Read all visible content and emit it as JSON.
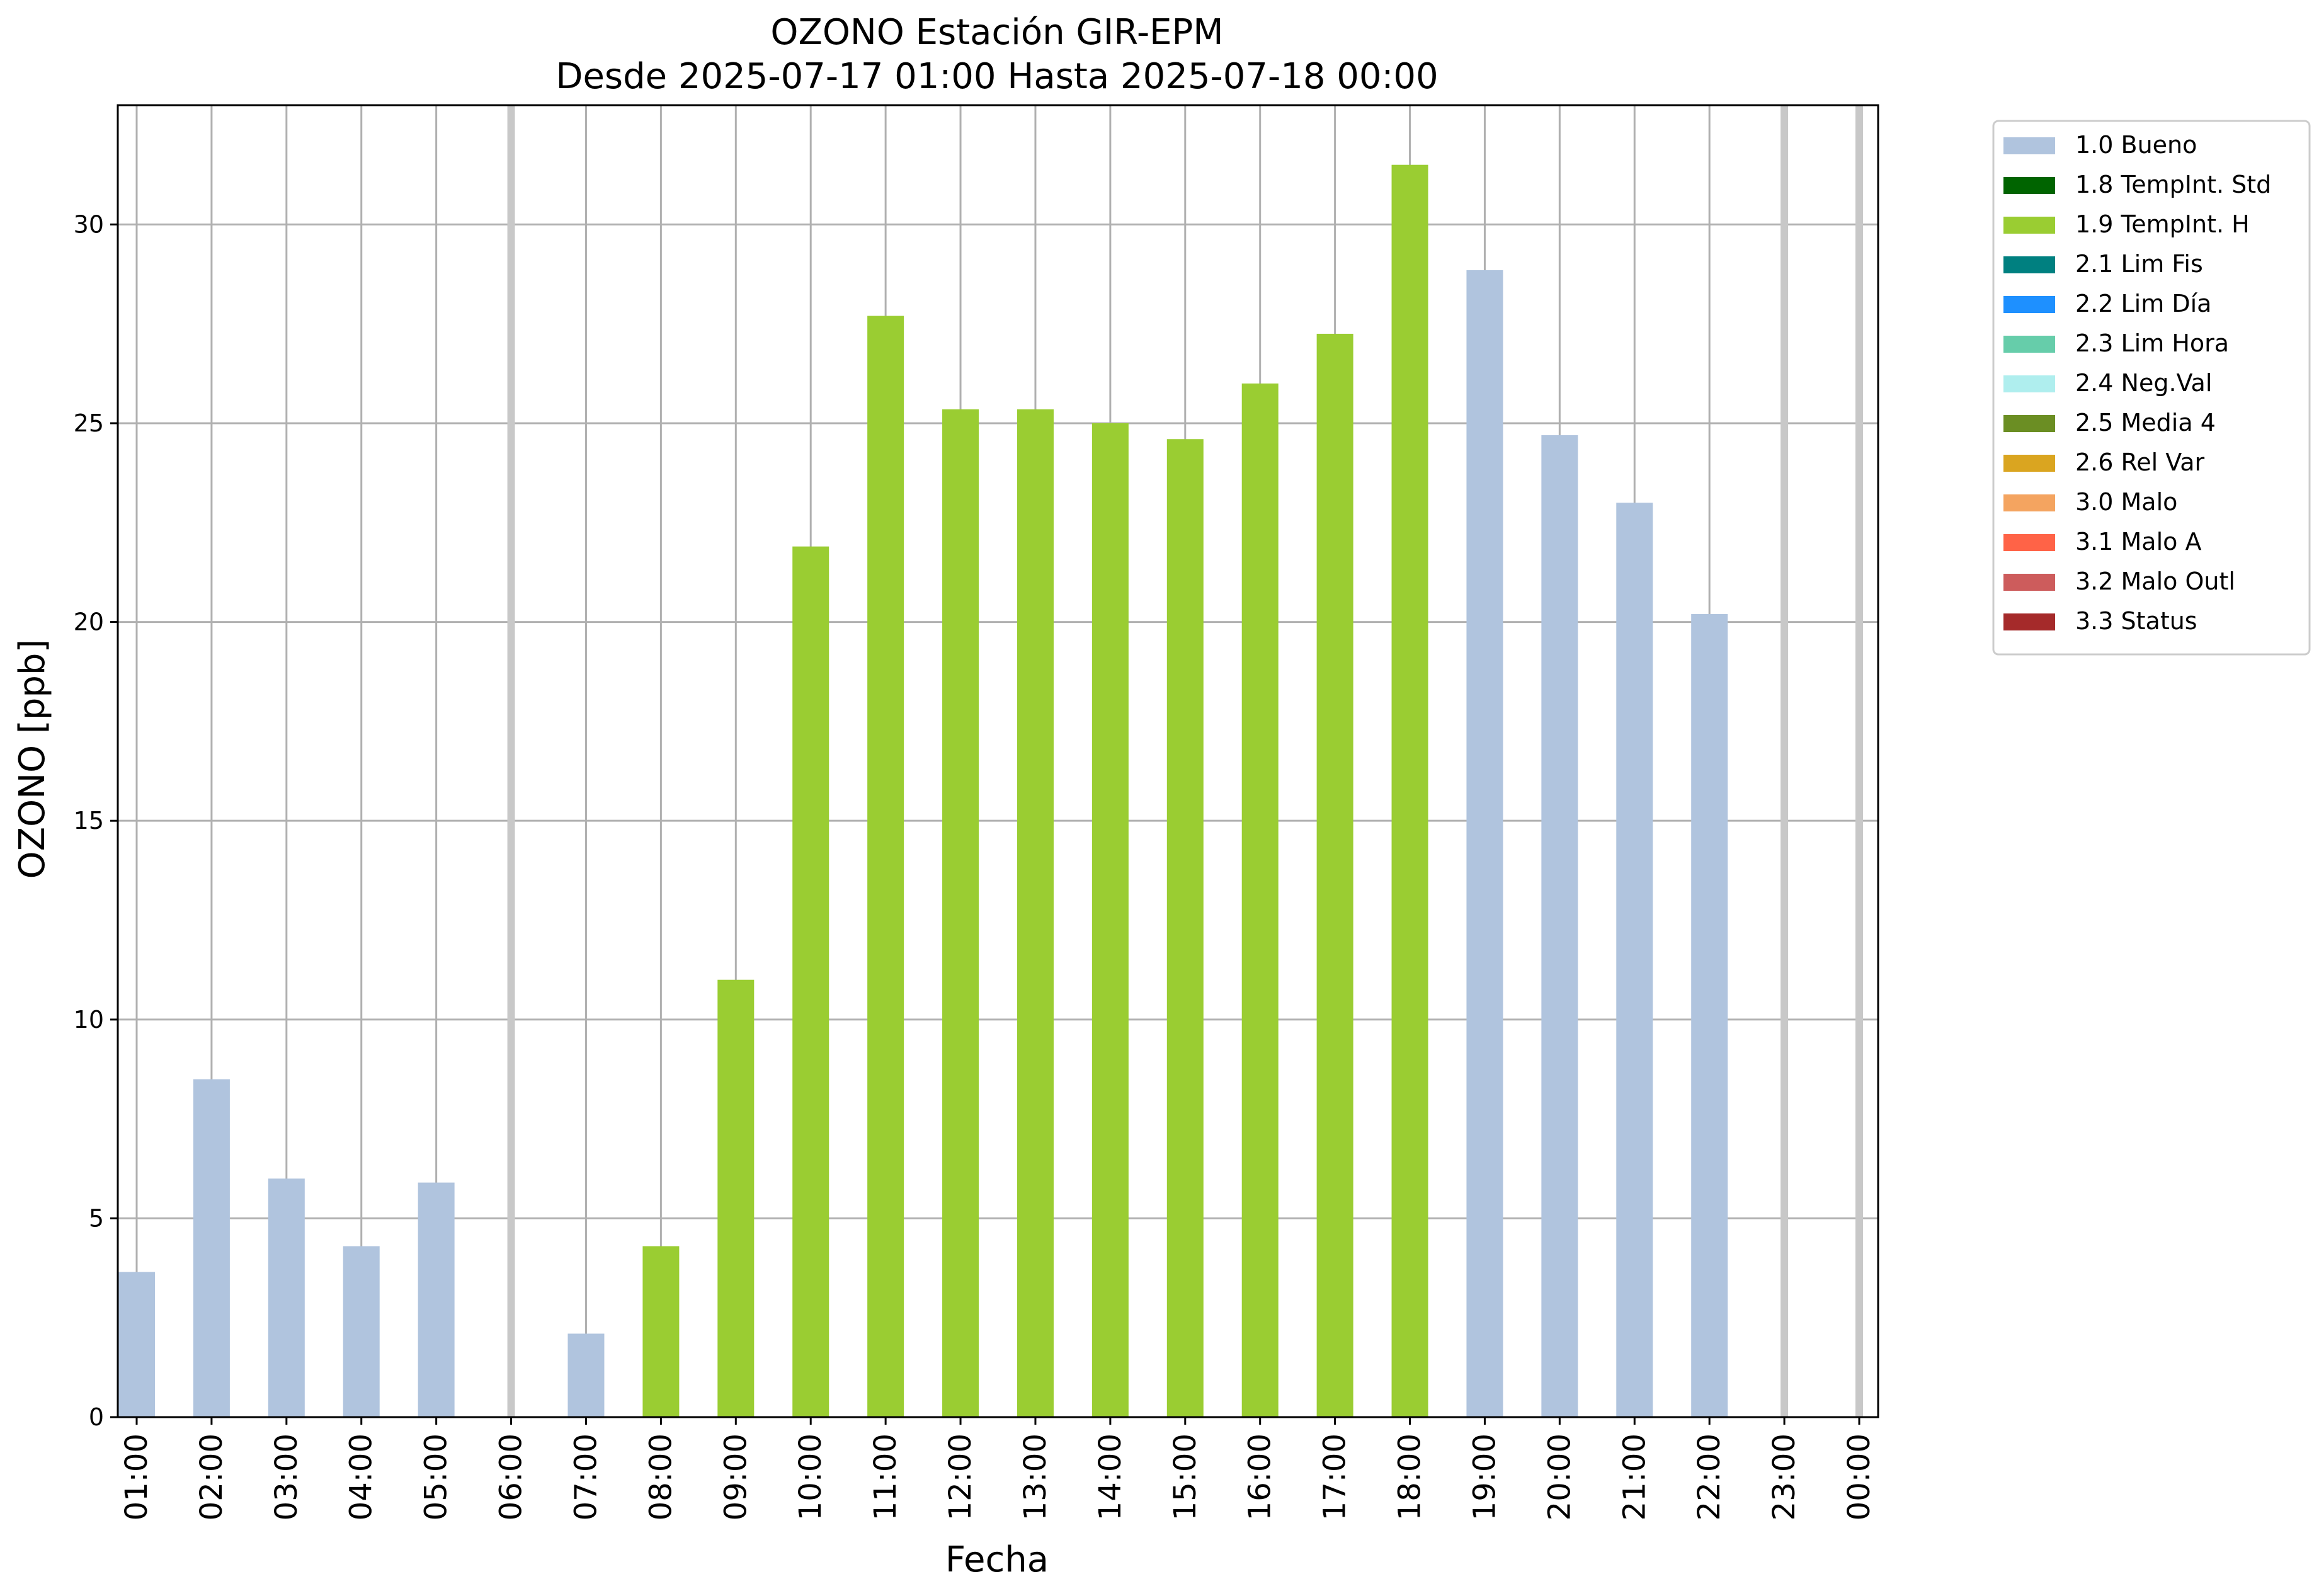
{
  "chart_data": {
    "type": "bar",
    "title": "OZONO Estación GIR-EPM",
    "subtitle": "Desde 2025-07-17 01:00 Hasta 2025-07-18 00:00",
    "xlabel": "Fecha",
    "ylabel": "OZONO [ppb]",
    "ylim": [
      0,
      33
    ],
    "yticks": [
      0,
      5,
      10,
      15,
      20,
      25,
      30
    ],
    "grid": true,
    "legend_position": "outside-right",
    "categories": [
      "01:00",
      "02:00",
      "03:00",
      "04:00",
      "05:00",
      "06:00",
      "07:00",
      "08:00",
      "09:00",
      "10:00",
      "11:00",
      "12:00",
      "13:00",
      "14:00",
      "15:00",
      "16:00",
      "17:00",
      "18:00",
      "19:00",
      "20:00",
      "21:00",
      "22:00",
      "23:00",
      "00:00"
    ],
    "values": [
      3.65,
      8.5,
      6.0,
      4.3,
      5.9,
      null,
      2.1,
      4.3,
      11.0,
      21.9,
      27.7,
      25.35,
      25.35,
      25.0,
      24.6,
      26.0,
      27.25,
      31.5,
      28.85,
      24.7,
      23.0,
      20.2,
      null,
      null
    ],
    "flags": [
      "1.0 Bueno",
      "1.0 Bueno",
      "1.0 Bueno",
      "1.0 Bueno",
      "1.0 Bueno",
      null,
      "1.0 Bueno",
      "1.9 TempInt. H",
      "1.9 TempInt. H",
      "1.9 TempInt. H",
      "1.9 TempInt. H",
      "1.9 TempInt. H",
      "1.9 TempInt. H",
      "1.9 TempInt. H",
      "1.9 TempInt. H",
      "1.9 TempInt. H",
      "1.9 TempInt. H",
      "1.9 TempInt. H",
      "1.0 Bueno",
      "1.0 Bueno",
      "1.0 Bueno",
      "1.0 Bueno",
      null,
      null
    ],
    "missing_markers": [
      "06:00",
      "23:00",
      "00:00"
    ],
    "legend": [
      {
        "label": "1.0 Bueno",
        "color": "#b0c4de"
      },
      {
        "label": "1.8 TempInt. Std",
        "color": "#006400"
      },
      {
        "label": "1.9 TempInt. H",
        "color": "#9acd32"
      },
      {
        "label": "2.1 Lim Fis",
        "color": "#008080"
      },
      {
        "label": "2.2 Lim Día",
        "color": "#1e90ff"
      },
      {
        "label": "2.3 Lim Hora",
        "color": "#66cdaa"
      },
      {
        "label": "2.4 Neg.Val",
        "color": "#afeeee"
      },
      {
        "label": "2.5 Media 4",
        "color": "#6b8e23"
      },
      {
        "label": "2.6 Rel Var",
        "color": "#daa520"
      },
      {
        "label": "3.0 Malo",
        "color": "#f4a460"
      },
      {
        "label": "3.1 Malo A",
        "color": "#ff6347"
      },
      {
        "label": "3.2 Malo Outl",
        "color": "#cd5c5c"
      },
      {
        "label": "3.3 Status",
        "color": "#a52a2a"
      }
    ]
  }
}
